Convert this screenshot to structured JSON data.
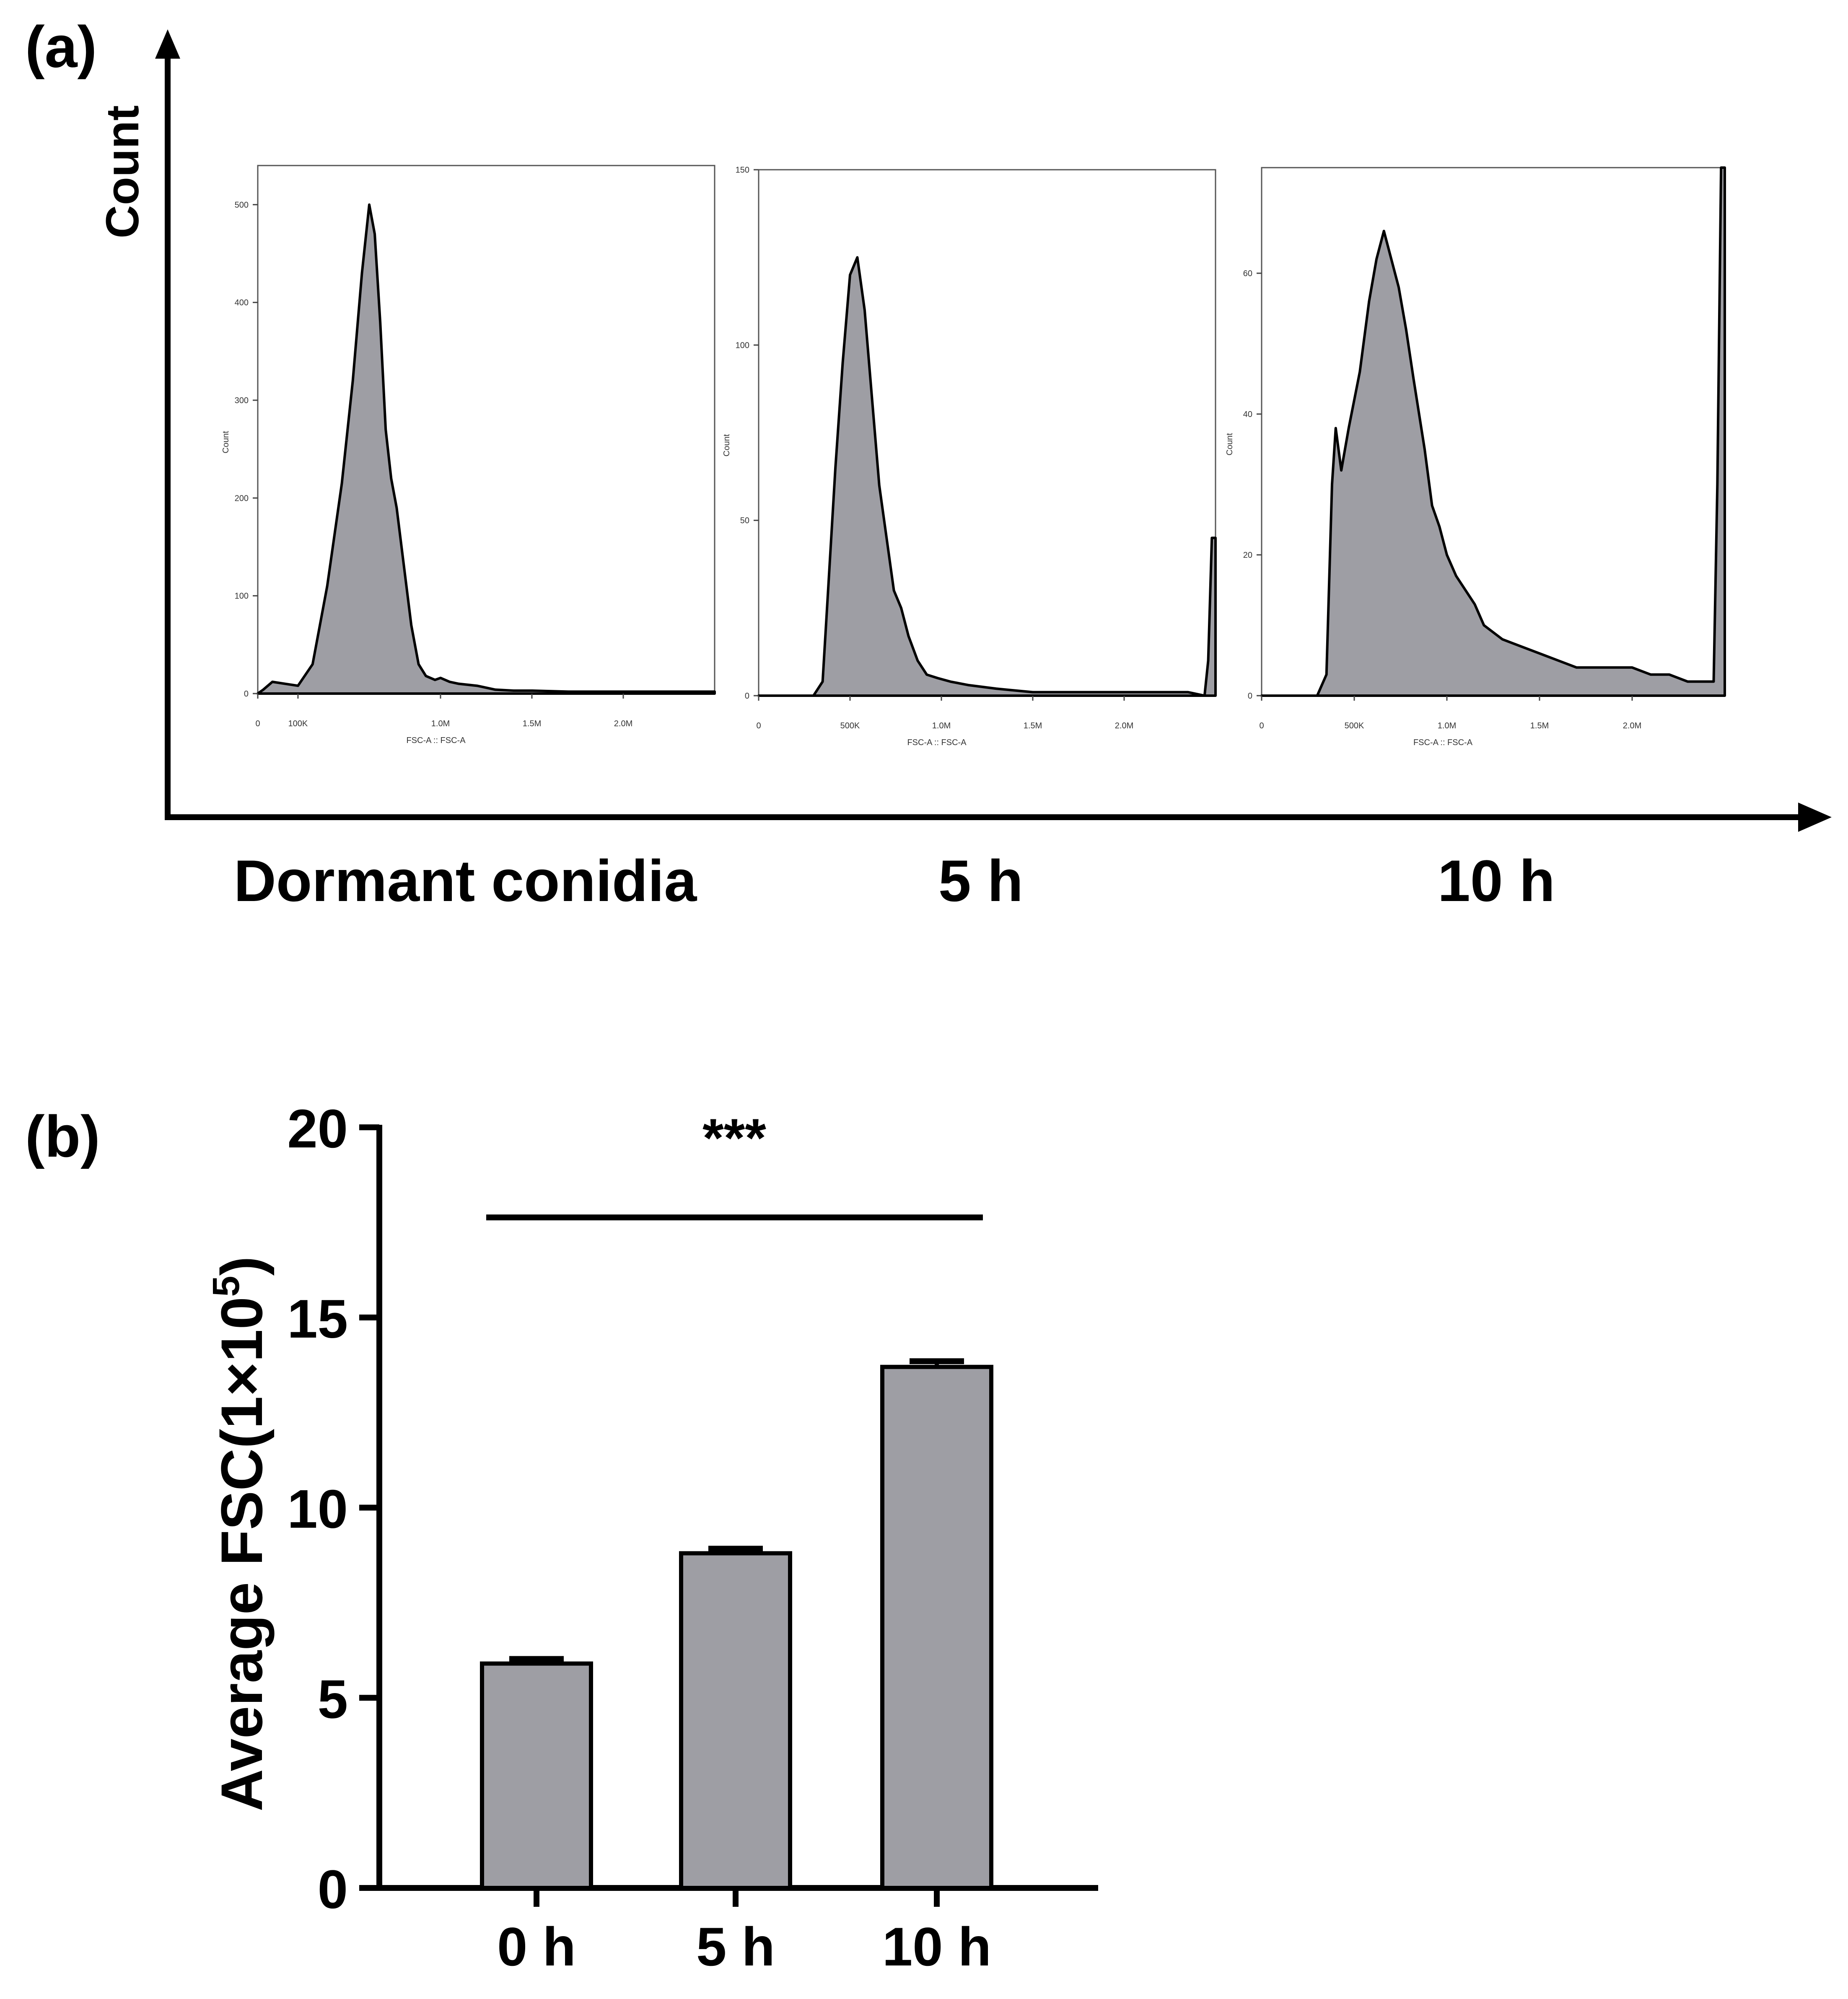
{
  "colors": {
    "fill": "#9e9ea4",
    "stroke": "#000000",
    "axis": "#000000",
    "background": "#ffffff"
  },
  "panel_a": {
    "label": "(a)",
    "y_axis_label": "Count",
    "histograms": [
      {
        "caption": "Dormant conidia",
        "y_ticks": [
          "0",
          "100",
          "200",
          "300",
          "400",
          "500"
        ],
        "x_ticks": [
          "0",
          "100K",
          "1.0M",
          "1.5M",
          "2.0M"
        ],
        "y_label": "Count",
        "x_label": "FSC-A :: FSC-A"
      },
      {
        "caption": "5 h",
        "y_ticks": [
          "0",
          "50",
          "100",
          "150"
        ],
        "x_ticks": [
          "0",
          "500K",
          "1.0M",
          "1.5M",
          "2.0M"
        ],
        "y_label": "Count",
        "x_label": "FSC-A :: FSC-A"
      },
      {
        "caption": "10 h",
        "y_ticks": [
          "0",
          "20",
          "40",
          "60"
        ],
        "x_ticks": [
          "0",
          "500K",
          "1.0M",
          "1.5M",
          "2.0M"
        ],
        "y_label": "Count",
        "x_label": "FSC-A :: FSC-A"
      }
    ]
  },
  "chart_data": [
    {
      "type": "area",
      "title": "Dormant conidia",
      "xlabel": "FSC-A :: FSC-A",
      "ylabel": "Count",
      "xlim": [
        0,
        2500000
      ],
      "ylim": [
        0,
        540
      ],
      "x": [
        0,
        30000,
        80000,
        150000,
        220000,
        300000,
        380000,
        460000,
        520000,
        570000,
        610000,
        640000,
        670000,
        700000,
        730000,
        760000,
        800000,
        840000,
        880000,
        920000,
        970000,
        1000000,
        1050000,
        1100000,
        1200000,
        1300000,
        1400000,
        1500000,
        1700000,
        2000000,
        2300000,
        2500000
      ],
      "y": [
        0,
        4,
        12,
        10,
        8,
        30,
        110,
        215,
        320,
        430,
        500,
        470,
        380,
        270,
        220,
        190,
        130,
        70,
        30,
        18,
        14,
        16,
        12,
        10,
        8,
        4,
        3,
        3,
        2,
        2,
        2,
        2
      ]
    },
    {
      "type": "area",
      "title": "5 h",
      "xlabel": "FSC-A :: FSC-A",
      "ylabel": "Count",
      "xlim": [
        0,
        2500000
      ],
      "ylim": [
        0,
        150
      ],
      "x": [
        0,
        200000,
        300000,
        350000,
        380000,
        420000,
        460000,
        500000,
        540000,
        580000,
        620000,
        660000,
        700000,
        740000,
        780000,
        820000,
        870000,
        920000,
        980000,
        1050000,
        1150000,
        1300000,
        1500000,
        1800000,
        2100000,
        2350000,
        2440000,
        2460000,
        2480000,
        2500000
      ],
      "y": [
        0,
        0,
        0,
        4,
        30,
        65,
        95,
        120,
        125,
        110,
        85,
        60,
        45,
        30,
        25,
        17,
        10,
        6,
        5,
        4,
        3,
        2,
        1,
        1,
        1,
        1,
        0,
        10,
        45,
        45
      ]
    },
    {
      "type": "area",
      "title": "10 h",
      "xlabel": "FSC-A :: FSC-A",
      "ylabel": "Count",
      "xlim": [
        0,
        2500000
      ],
      "ylim": [
        0,
        75
      ],
      "x": [
        0,
        300000,
        350000,
        380000,
        400000,
        430000,
        470000,
        530000,
        580000,
        620000,
        660000,
        700000,
        740000,
        780000,
        820000,
        880000,
        920000,
        960000,
        1000000,
        1050000,
        1100000,
        1150000,
        1200000,
        1300000,
        1400000,
        1500000,
        1600000,
        1700000,
        1800000,
        1900000,
        2000000,
        2100000,
        2200000,
        2300000,
        2400000,
        2440000,
        2460000,
        2480000,
        2500000
      ],
      "y": [
        0,
        0,
        3,
        30,
        38,
        32,
        38,
        46,
        56,
        62,
        66,
        62,
        58,
        52,
        45,
        35,
        27,
        24,
        20,
        17,
        15,
        13,
        10,
        8,
        7,
        6,
        5,
        4,
        4,
        4,
        4,
        3,
        3,
        2,
        2,
        2,
        30,
        75,
        75
      ]
    },
    {
      "type": "bar",
      "title": "",
      "categories": [
        "0 h",
        "5 h",
        "10 h"
      ],
      "values": [
        5.9,
        8.8,
        13.7
      ],
      "errors": [
        0.12,
        0.12,
        0.15
      ],
      "xlabel": "",
      "ylabel": "Average FSC(1×10⁵)",
      "ylim": [
        0,
        20
      ],
      "yticks": [
        "0",
        "5",
        "10",
        "15",
        "20"
      ],
      "significance": "***"
    }
  ],
  "panel_b": {
    "label": "(b)",
    "ylabel_main": "Average FSC(1×10",
    "ylabel_sup": "5",
    "ylabel_close": ")"
  }
}
